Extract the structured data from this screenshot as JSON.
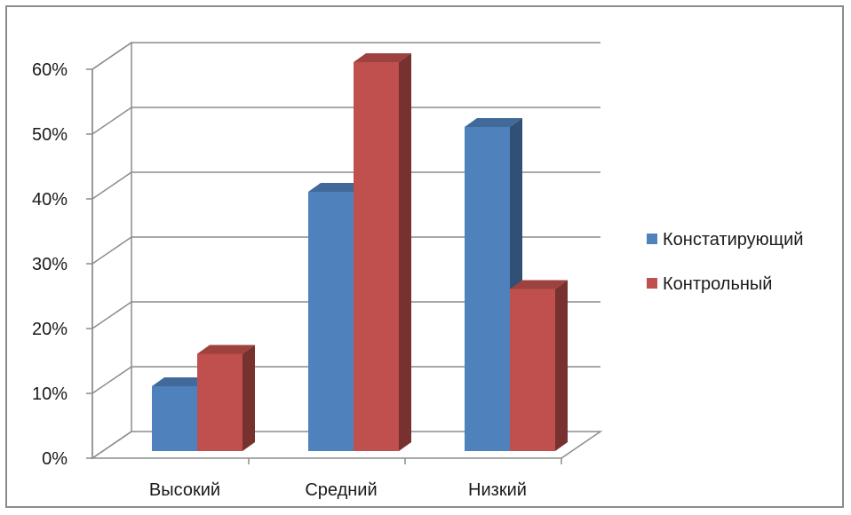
{
  "chart_data": {
    "type": "bar",
    "categories": [
      "Высокий",
      "Средний",
      "Низкий"
    ],
    "series": [
      {
        "name": "Констатирующий",
        "values": [
          10,
          40,
          50
        ],
        "color": "#4f81bd"
      },
      {
        "name": "Контрольный",
        "values": [
          15,
          60,
          25
        ],
        "color": "#c0504d"
      }
    ],
    "yticks": [
      "0%",
      "10%",
      "20%",
      "30%",
      "40%",
      "50%",
      "60%"
    ],
    "ylim": [
      0,
      60
    ],
    "grid": true,
    "legend_position": "right",
    "style": "3d-clustered-column"
  }
}
